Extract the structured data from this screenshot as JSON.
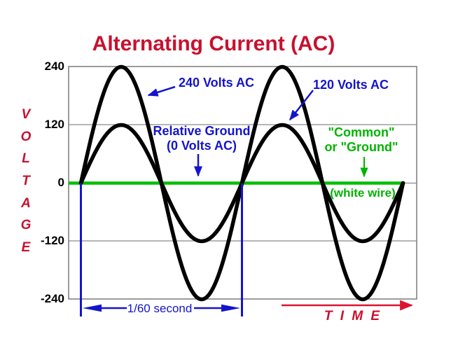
{
  "title": "Alternating Current (AC)",
  "colors": {
    "title_crimson": "#C8102E",
    "annotation_blue": "#1414CC",
    "ground_green": "#00B400",
    "wave_black": "#000000",
    "grid_gray": "#8a8a8a"
  },
  "y_axis": {
    "label": "VOLTAGE",
    "letters": [
      "V",
      "O",
      "L",
      "T",
      "A",
      "G",
      "E"
    ],
    "ticks": [
      "240",
      "120",
      "0",
      "-120",
      "-240"
    ]
  },
  "x_axis": {
    "label": "T I M E",
    "period_label": "1/60 second"
  },
  "annotations": {
    "wave240_label": "240 Volts AC",
    "wave120_label": "120 Volts AC",
    "relative_ground_line1": "Relative Ground",
    "relative_ground_line2": "(0 Volts AC)",
    "common_line1": "\"Common\"",
    "common_line2": "or \"Ground\"",
    "white_wire": "(white wire)"
  },
  "chart_data": {
    "type": "line",
    "title": "Alternating Current (AC)",
    "xlabel": "TIME",
    "ylabel": "VOLTAGE",
    "ylim": [
      -240,
      240
    ],
    "yticks": [
      240,
      120,
      0,
      -120,
      -240
    ],
    "grid": true,
    "legend": "none (curves labeled with arrow callouts)",
    "x_period_seconds": 0.01667,
    "x_period_label": "1/60 second",
    "cycles_shown": 2,
    "series": [
      {
        "name": "240 Volts AC",
        "waveform": "sine",
        "peak_volts": 240,
        "phase_deg": 0,
        "color": "#000000"
      },
      {
        "name": "120 Volts AC",
        "waveform": "sine",
        "peak_volts": 120,
        "phase_deg": 0,
        "color": "#000000"
      },
      {
        "name": "Relative Ground (0 Volts AC) / \"Common\" or \"Ground\" (white wire)",
        "waveform": "constant",
        "value_volts": 0,
        "color": "#00B400"
      }
    ]
  }
}
